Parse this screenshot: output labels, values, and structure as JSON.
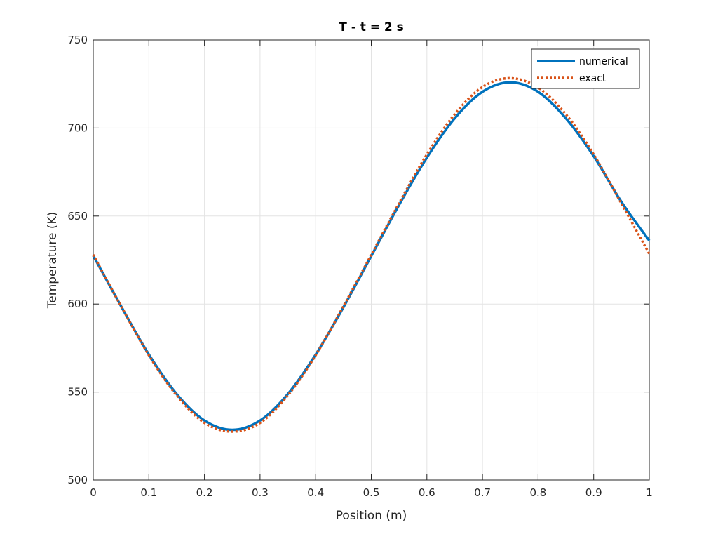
{
  "chart_data": {
    "type": "line",
    "title": "T - t = 2 s",
    "xlabel": "Position (m)",
    "ylabel": "Temperature (K)",
    "xlim": [
      0,
      1
    ],
    "ylim": [
      500,
      750
    ],
    "xticks": [
      0,
      0.1,
      0.2,
      0.3,
      0.4,
      0.5,
      0.6,
      0.7,
      0.8,
      0.9,
      1
    ],
    "xtick_labels": [
      "0",
      "0.1",
      "0.2",
      "0.3",
      "0.4",
      "0.5",
      "0.6",
      "0.7",
      "0.8",
      "0.9",
      "1"
    ],
    "yticks": [
      500,
      550,
      600,
      650,
      700,
      750
    ],
    "ytick_labels": [
      "500",
      "550",
      "600",
      "650",
      "700",
      "750"
    ],
    "grid": true,
    "legend_location": "top-right",
    "series": [
      {
        "name": "numerical",
        "color": "#0072BD",
        "style": "solid",
        "x": [
          0,
          0.05,
          0.1,
          0.15,
          0.2,
          0.25,
          0.3,
          0.35,
          0.4,
          0.45,
          0.5,
          0.55,
          0.6,
          0.65,
          0.7,
          0.75,
          0.8,
          0.85,
          0.9,
          0.95,
          1.0
        ],
        "y": [
          627.5,
          598.8,
          571.4,
          548.9,
          533.8,
          528.5,
          533.8,
          548.9,
          571.3,
          598.2,
          627.3,
          656.3,
          683.2,
          705.5,
          720.6,
          726.0,
          720.6,
          705.5,
          684.0,
          658.0,
          636.0
        ]
      },
      {
        "name": "exact",
        "color": "#D95319",
        "style": "dotted",
        "x": [
          0,
          0.05,
          0.1,
          0.15,
          0.2,
          0.25,
          0.3,
          0.35,
          0.4,
          0.45,
          0.5,
          0.55,
          0.6,
          0.65,
          0.7,
          0.75,
          0.8,
          0.85,
          0.9,
          0.95,
          1.0
        ],
        "y": [
          628.0,
          598.8,
          570.9,
          548.1,
          532.5,
          527.5,
          532.5,
          548.1,
          570.9,
          598.8,
          628.0,
          657.3,
          685.0,
          707.8,
          723.3,
          728.3,
          723.0,
          707.8,
          685.0,
          657.0,
          628.5
        ]
      }
    ]
  }
}
